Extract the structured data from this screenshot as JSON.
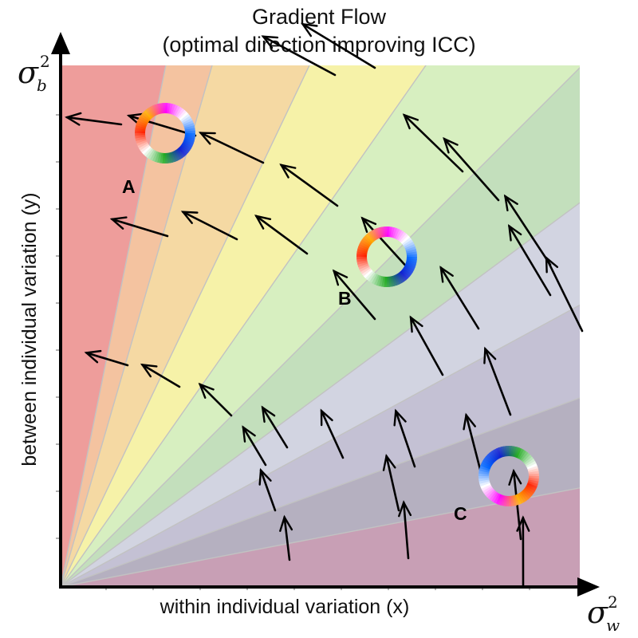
{
  "title_line1": "Gradient Flow",
  "title_line2": "(optimal direction improving ICC)",
  "x_axis_label": "within individual variation (x)",
  "y_axis_label": "between individual variation (y)",
  "x_axis_symbol": "σ",
  "x_axis_symbol_sub": "w",
  "x_axis_symbol_sup": "2",
  "y_axis_symbol": "σ",
  "y_axis_symbol_sub": "b",
  "y_axis_symbol_sup": "2",
  "points": [
    {
      "label": "A"
    },
    {
      "label": "B"
    },
    {
      "label": "C"
    }
  ],
  "band_colors": [
    "#ee9d9b",
    "#f4c3a0",
    "#f5d9a3",
    "#f6f2a8",
    "#d7efc0",
    "#c3dfbc",
    "#d2d4e1",
    "#c4c1d4",
    "#b5b0c0",
    "#c89fb5"
  ],
  "divider_color": "#c2c2c2",
  "arrow_color": "#000000"
}
